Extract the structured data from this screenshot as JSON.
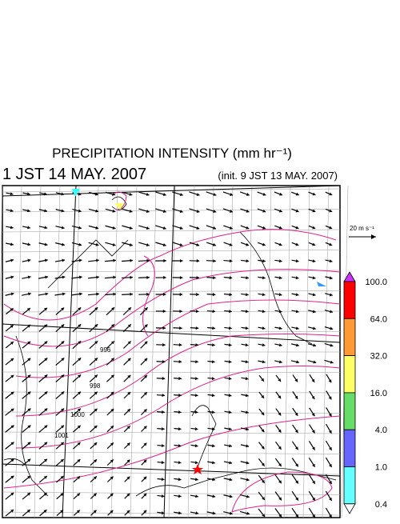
{
  "header": {
    "title": "PRECIPITATION INTENSITY (mm hr⁻¹)",
    "valid_time": "1 JST 14 MAY. 2007",
    "init_time": "(init. 9 JST 13 MAY. 2007)"
  },
  "vector_legend": "20 m s⁻¹",
  "colorbar": {
    "labels": [
      "100.0",
      "64.0",
      "32.0",
      "16.0",
      "4.0",
      "1.0",
      "0.4"
    ],
    "colors": [
      "#cc33ff",
      "#ff0000",
      "#ff9933",
      "#ffff66",
      "#66dd66",
      "#6666ff",
      "#66ffff",
      "#ffffff"
    ]
  },
  "contour_labels": [
    "996",
    "998",
    "1000",
    "1001"
  ]
}
